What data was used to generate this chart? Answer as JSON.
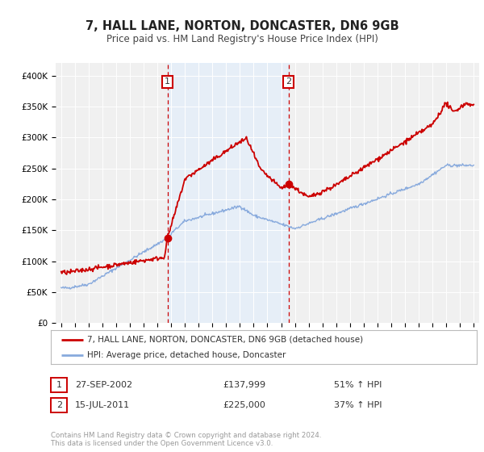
{
  "title": "7, HALL LANE, NORTON, DONCASTER, DN6 9GB",
  "subtitle": "Price paid vs. HM Land Registry's House Price Index (HPI)",
  "title_fontsize": 10.5,
  "subtitle_fontsize": 8.5,
  "property_label": "7, HALL LANE, NORTON, DONCASTER, DN6 9GB (detached house)",
  "hpi_label": "HPI: Average price, detached house, Doncaster",
  "property_color": "#cc0000",
  "hpi_color": "#88aadd",
  "shaded_color": "#ddeeff",
  "marker1_date": 2002.74,
  "marker1_price": 137999,
  "marker2_date": 2011.54,
  "marker2_price": 225000,
  "ylim": [
    0,
    420000
  ],
  "yticks": [
    0,
    50000,
    100000,
    150000,
    200000,
    250000,
    300000,
    350000,
    400000
  ],
  "xlim_start": 1994.6,
  "xlim_end": 2025.4,
  "footer": "Contains HM Land Registry data © Crown copyright and database right 2024.\nThis data is licensed under the Open Government Licence v3.0.",
  "background_color": "#ffffff",
  "plot_bg_color": "#f0f0f0"
}
